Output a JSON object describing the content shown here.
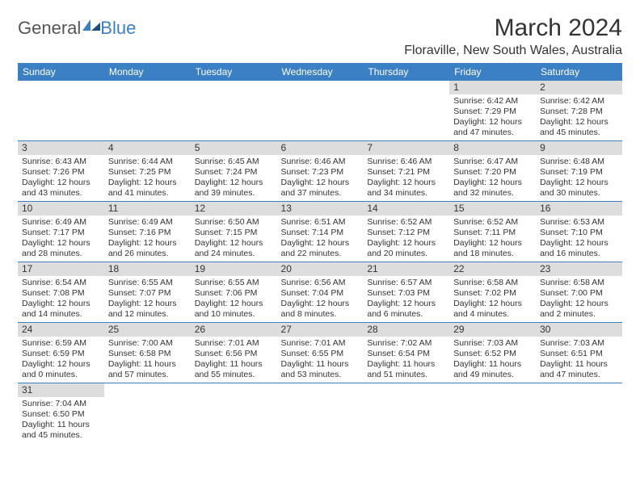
{
  "logo": {
    "text_general": "General",
    "text_blue": "Blue"
  },
  "header": {
    "month_title": "March 2024",
    "location": "Floraville, New South Wales, Australia"
  },
  "day_headers": [
    "Sunday",
    "Monday",
    "Tuesday",
    "Wednesday",
    "Thursday",
    "Friday",
    "Saturday"
  ],
  "colors": {
    "header_bg": "#3b7fc4",
    "daynum_bg": "#dddddd",
    "row_divider": "#3b7fc4"
  },
  "weeks": [
    [
      null,
      null,
      null,
      null,
      null,
      {
        "n": "1",
        "sunrise": "6:42 AM",
        "sunset": "7:29 PM",
        "daylight": "12 hours and 47 minutes."
      },
      {
        "n": "2",
        "sunrise": "6:42 AM",
        "sunset": "7:28 PM",
        "daylight": "12 hours and 45 minutes."
      }
    ],
    [
      {
        "n": "3",
        "sunrise": "6:43 AM",
        "sunset": "7:26 PM",
        "daylight": "12 hours and 43 minutes."
      },
      {
        "n": "4",
        "sunrise": "6:44 AM",
        "sunset": "7:25 PM",
        "daylight": "12 hours and 41 minutes."
      },
      {
        "n": "5",
        "sunrise": "6:45 AM",
        "sunset": "7:24 PM",
        "daylight": "12 hours and 39 minutes."
      },
      {
        "n": "6",
        "sunrise": "6:46 AM",
        "sunset": "7:23 PM",
        "daylight": "12 hours and 37 minutes."
      },
      {
        "n": "7",
        "sunrise": "6:46 AM",
        "sunset": "7:21 PM",
        "daylight": "12 hours and 34 minutes."
      },
      {
        "n": "8",
        "sunrise": "6:47 AM",
        "sunset": "7:20 PM",
        "daylight": "12 hours and 32 minutes."
      },
      {
        "n": "9",
        "sunrise": "6:48 AM",
        "sunset": "7:19 PM",
        "daylight": "12 hours and 30 minutes."
      }
    ],
    [
      {
        "n": "10",
        "sunrise": "6:49 AM",
        "sunset": "7:17 PM",
        "daylight": "12 hours and 28 minutes."
      },
      {
        "n": "11",
        "sunrise": "6:49 AM",
        "sunset": "7:16 PM",
        "daylight": "12 hours and 26 minutes."
      },
      {
        "n": "12",
        "sunrise": "6:50 AM",
        "sunset": "7:15 PM",
        "daylight": "12 hours and 24 minutes."
      },
      {
        "n": "13",
        "sunrise": "6:51 AM",
        "sunset": "7:14 PM",
        "daylight": "12 hours and 22 minutes."
      },
      {
        "n": "14",
        "sunrise": "6:52 AM",
        "sunset": "7:12 PM",
        "daylight": "12 hours and 20 minutes."
      },
      {
        "n": "15",
        "sunrise": "6:52 AM",
        "sunset": "7:11 PM",
        "daylight": "12 hours and 18 minutes."
      },
      {
        "n": "16",
        "sunrise": "6:53 AM",
        "sunset": "7:10 PM",
        "daylight": "12 hours and 16 minutes."
      }
    ],
    [
      {
        "n": "17",
        "sunrise": "6:54 AM",
        "sunset": "7:08 PM",
        "daylight": "12 hours and 14 minutes."
      },
      {
        "n": "18",
        "sunrise": "6:55 AM",
        "sunset": "7:07 PM",
        "daylight": "12 hours and 12 minutes."
      },
      {
        "n": "19",
        "sunrise": "6:55 AM",
        "sunset": "7:06 PM",
        "daylight": "12 hours and 10 minutes."
      },
      {
        "n": "20",
        "sunrise": "6:56 AM",
        "sunset": "7:04 PM",
        "daylight": "12 hours and 8 minutes."
      },
      {
        "n": "21",
        "sunrise": "6:57 AM",
        "sunset": "7:03 PM",
        "daylight": "12 hours and 6 minutes."
      },
      {
        "n": "22",
        "sunrise": "6:58 AM",
        "sunset": "7:02 PM",
        "daylight": "12 hours and 4 minutes."
      },
      {
        "n": "23",
        "sunrise": "6:58 AM",
        "sunset": "7:00 PM",
        "daylight": "12 hours and 2 minutes."
      }
    ],
    [
      {
        "n": "24",
        "sunrise": "6:59 AM",
        "sunset": "6:59 PM",
        "daylight": "12 hours and 0 minutes."
      },
      {
        "n": "25",
        "sunrise": "7:00 AM",
        "sunset": "6:58 PM",
        "daylight": "11 hours and 57 minutes."
      },
      {
        "n": "26",
        "sunrise": "7:01 AM",
        "sunset": "6:56 PM",
        "daylight": "11 hours and 55 minutes."
      },
      {
        "n": "27",
        "sunrise": "7:01 AM",
        "sunset": "6:55 PM",
        "daylight": "11 hours and 53 minutes."
      },
      {
        "n": "28",
        "sunrise": "7:02 AM",
        "sunset": "6:54 PM",
        "daylight": "11 hours and 51 minutes."
      },
      {
        "n": "29",
        "sunrise": "7:03 AM",
        "sunset": "6:52 PM",
        "daylight": "11 hours and 49 minutes."
      },
      {
        "n": "30",
        "sunrise": "7:03 AM",
        "sunset": "6:51 PM",
        "daylight": "11 hours and 47 minutes."
      }
    ],
    [
      {
        "n": "31",
        "sunrise": "7:04 AM",
        "sunset": "6:50 PM",
        "daylight": "11 hours and 45 minutes."
      },
      null,
      null,
      null,
      null,
      null,
      null
    ]
  ],
  "labels": {
    "sunrise": "Sunrise: ",
    "sunset": "Sunset: ",
    "daylight": "Daylight: "
  }
}
